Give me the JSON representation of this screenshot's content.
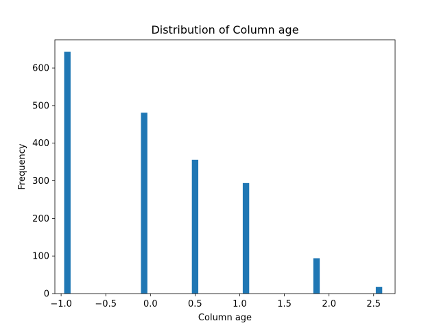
{
  "chart_data": {
    "type": "bar",
    "title": "Distribution of Column age",
    "xlabel": "Column age",
    "ylabel": "Frequency",
    "xlim": [
      -1.07,
      2.74
    ],
    "ylim": [
      0,
      675
    ],
    "bar_width": 0.072,
    "bar_color": "#1f77b4",
    "grid": false,
    "x": [
      -0.93,
      -0.07,
      0.5,
      1.07,
      1.86,
      2.56
    ],
    "values": [
      643,
      481,
      356,
      294,
      94,
      18
    ],
    "xticks": [
      {
        "value": -1.0,
        "label": "−1.0"
      },
      {
        "value": -0.5,
        "label": "−0.5"
      },
      {
        "value": 0.0,
        "label": "0.0"
      },
      {
        "value": 0.5,
        "label": "0.5"
      },
      {
        "value": 1.0,
        "label": "1.0"
      },
      {
        "value": 1.5,
        "label": "1.5"
      },
      {
        "value": 2.0,
        "label": "2.0"
      },
      {
        "value": 2.5,
        "label": "2.5"
      }
    ],
    "yticks": [
      {
        "value": 0,
        "label": "0"
      },
      {
        "value": 100,
        "label": "100"
      },
      {
        "value": 200,
        "label": "200"
      },
      {
        "value": 300,
        "label": "300"
      },
      {
        "value": 400,
        "label": "400"
      },
      {
        "value": 500,
        "label": "500"
      },
      {
        "value": 600,
        "label": "600"
      }
    ]
  }
}
